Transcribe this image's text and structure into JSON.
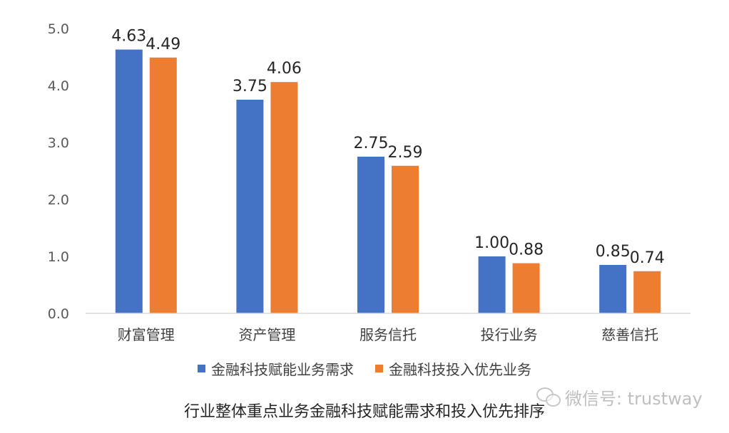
{
  "chart_data": {
    "type": "bar",
    "categories": [
      "财富管理",
      "资产管理",
      "服务信托",
      "投行业务",
      "慈善信托"
    ],
    "series": [
      {
        "name": "金融科技赋能业务需求",
        "values": [
          4.63,
          3.75,
          2.75,
          1.0,
          0.85
        ],
        "labels": [
          "4.63",
          "3.75",
          "2.75",
          "1.00",
          "0.85"
        ],
        "color": "#4472C4"
      },
      {
        "name": "金融科技投入优先业务",
        "values": [
          4.49,
          4.06,
          2.59,
          0.88,
          0.74
        ],
        "labels": [
          "4.49",
          "4.06",
          "2.59",
          "0.88",
          "0.74"
        ],
        "color": "#ED7D31"
      }
    ],
    "yticks": [
      "0.0",
      "1.0",
      "2.0",
      "3.0",
      "4.0",
      "5.0"
    ],
    "ylim": [
      0,
      5
    ],
    "grid": false,
    "legend": "bottom",
    "title": "行业整体重点业务金融科技赋能需求和投入优先排序"
  },
  "watermark": {
    "text": "微信号: trustway"
  }
}
